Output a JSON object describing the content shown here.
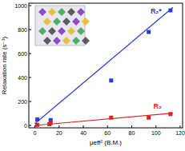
{
  "chart_data": {
    "type": "scatter",
    "x_label": "μeff² (B.M.)",
    "y_label": "Relaxation rate (s⁻¹)",
    "xlim": [
      -5,
      122
    ],
    "ylim": [
      -20,
      1020
    ],
    "xticks": [
      0,
      20,
      40,
      60,
      80,
      100,
      120
    ],
    "yticks": [
      0,
      200,
      400,
      600,
      800,
      1000
    ],
    "series": [
      {
        "name": "R₂*",
        "color": "#2b3fd6",
        "marker": "square",
        "x": [
          2,
          13,
          63,
          94,
          112
        ],
        "values": [
          50,
          45,
          375,
          780,
          960
        ],
        "fit_x": [
          0,
          114
        ],
        "fit_y": [
          15,
          985
        ]
      },
      {
        "name": "R₂",
        "color": "#d82424",
        "marker": "square",
        "x": [
          2,
          12,
          13,
          63,
          94,
          112
        ],
        "values": [
          5,
          10,
          20,
          65,
          65,
          95
        ],
        "fit_x": [
          0,
          114
        ],
        "fit_y": [
          0,
          102
        ]
      }
    ]
  }
}
